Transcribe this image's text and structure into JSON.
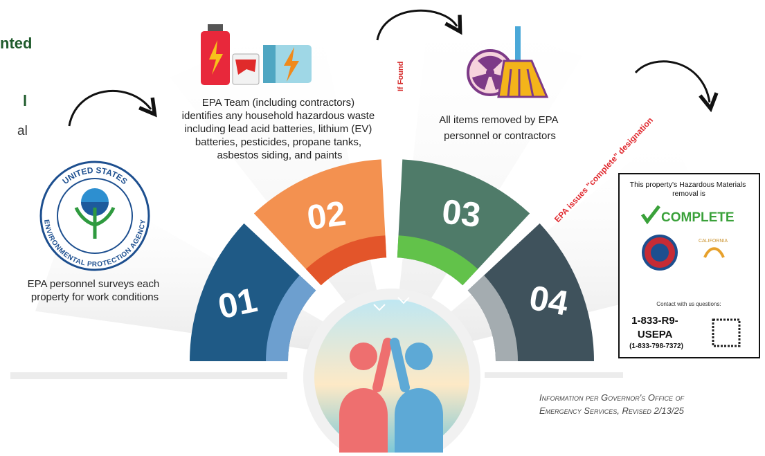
{
  "header_fragments": [
    "nted",
    "l",
    "al"
  ],
  "seal": {
    "top": "UNITED STATES",
    "bottom": "ENVIRONMENTAL PROTECTION AGENCY"
  },
  "steps": [
    {
      "number": "01",
      "text": [
        "EPA personnel surveys each",
        "property for work conditions"
      ]
    },
    {
      "number": "02",
      "text": [
        "EPA Team (including contractors)",
        "identifies any household hazardous waste",
        "including lead acid batteries, lithium (EV)",
        "batteries, pesticides, propane tanks,",
        "asbestos siding, and paints"
      ]
    },
    {
      "number": "03",
      "text": [
        "All items removed by EPA",
        "personnel or contractors"
      ]
    },
    {
      "number": "04"
    }
  ],
  "connectors": {
    "if_found": "If Found",
    "designation": "EPA issues \"complete\" designation"
  },
  "sign": {
    "heading": [
      "This property's Hazardous Materials",
      "removal is"
    ],
    "status": "COMPLETE",
    "state": "CALIFORNIA",
    "contact": "Contact with us questions:",
    "phone": [
      "1-833-R9-",
      "USEPA",
      "(1-833-798-7372)"
    ]
  },
  "footer": [
    "Information per Governor's Office of",
    "Emergency Services, Revised 2/13/25"
  ]
}
